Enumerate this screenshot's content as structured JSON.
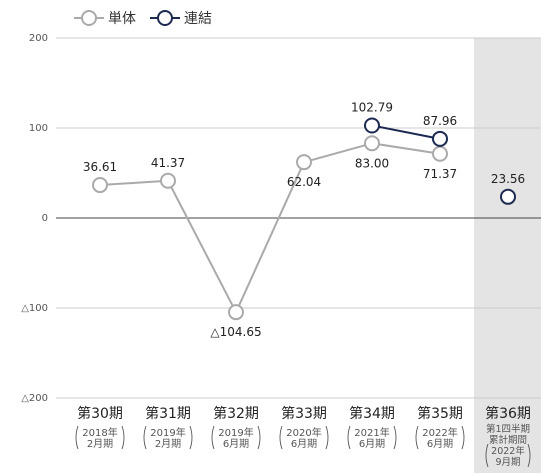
{
  "legend": {
    "tanntai": "単体",
    "renketsu": "連結"
  },
  "colors": {
    "tanntai": "#aaaaaa",
    "renketsu": "#1c2a52",
    "grid": "#cccccc",
    "zero_line": "#444444",
    "highlight_band": "#e4e4e4",
    "text": "#222222",
    "axis_text": "#555555"
  },
  "chart_data": {
    "type": "line",
    "categories": [
      {
        "main": "第30期",
        "sub": [
          "2018年",
          "2月期"
        ]
      },
      {
        "main": "第31期",
        "sub": [
          "2019年",
          "2月期"
        ]
      },
      {
        "main": "第32期",
        "sub": [
          "2019年",
          "6月期"
        ]
      },
      {
        "main": "第33期",
        "sub": [
          "2020年",
          "6月期"
        ]
      },
      {
        "main": "第34期",
        "sub": [
          "2021年",
          "6月期"
        ]
      },
      {
        "main": "第35期",
        "sub": [
          "2022年",
          "6月期"
        ]
      },
      {
        "main": "第36期",
        "sub": [
          "第1四半期",
          "累計期間",
          "2022年",
          "9月期"
        ]
      }
    ],
    "series": [
      {
        "name": "単体",
        "values": [
          36.61,
          41.37,
          -104.65,
          62.04,
          83.0,
          71.37,
          null
        ],
        "labels": [
          "36.61",
          "41.37",
          "△104.65",
          "62.04",
          "83.00",
          "71.37",
          null
        ]
      },
      {
        "name": "連結",
        "values": [
          null,
          null,
          null,
          null,
          102.79,
          87.96,
          23.56
        ],
        "labels": [
          null,
          null,
          null,
          null,
          "102.79",
          "87.96",
          "23.56"
        ]
      }
    ],
    "connect": [
      true,
      false
    ],
    "yticks": [
      "200",
      "100",
      "0",
      "△100",
      "△200"
    ],
    "ylim": [
      -200,
      200
    ],
    "highlight_category": 6
  }
}
